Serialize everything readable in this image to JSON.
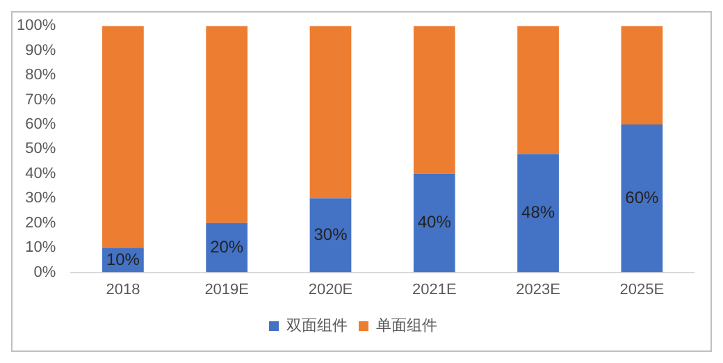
{
  "chart_data": {
    "type": "bar",
    "stacked": true,
    "categories": [
      "2018",
      "2019E",
      "2020E",
      "2021E",
      "2023E",
      "2025E"
    ],
    "series": [
      {
        "name": "双面组件",
        "color": "#4472c4",
        "values": [
          10,
          20,
          30,
          40,
          48,
          60
        ],
        "value_labels": [
          "10%",
          "20%",
          "30%",
          "40%",
          "48%",
          "60%"
        ]
      },
      {
        "name": "单面组件",
        "color": "#ed7d31",
        "values": [
          90,
          80,
          70,
          60,
          52,
          40
        ]
      }
    ],
    "ylim": [
      0,
      100
    ],
    "yticks": [
      {
        "value": 0,
        "label": "0%"
      },
      {
        "value": 10,
        "label": "10%"
      },
      {
        "value": 20,
        "label": "20%"
      },
      {
        "value": 30,
        "label": "30%"
      },
      {
        "value": 40,
        "label": "40%"
      },
      {
        "value": 50,
        "label": "50%"
      },
      {
        "value": 60,
        "label": "60%"
      },
      {
        "value": 70,
        "label": "70%"
      },
      {
        "value": 80,
        "label": "80%"
      },
      {
        "value": 90,
        "label": "90%"
      },
      {
        "value": 100,
        "label": "100%"
      }
    ],
    "grid": false,
    "legend": "bottom"
  }
}
